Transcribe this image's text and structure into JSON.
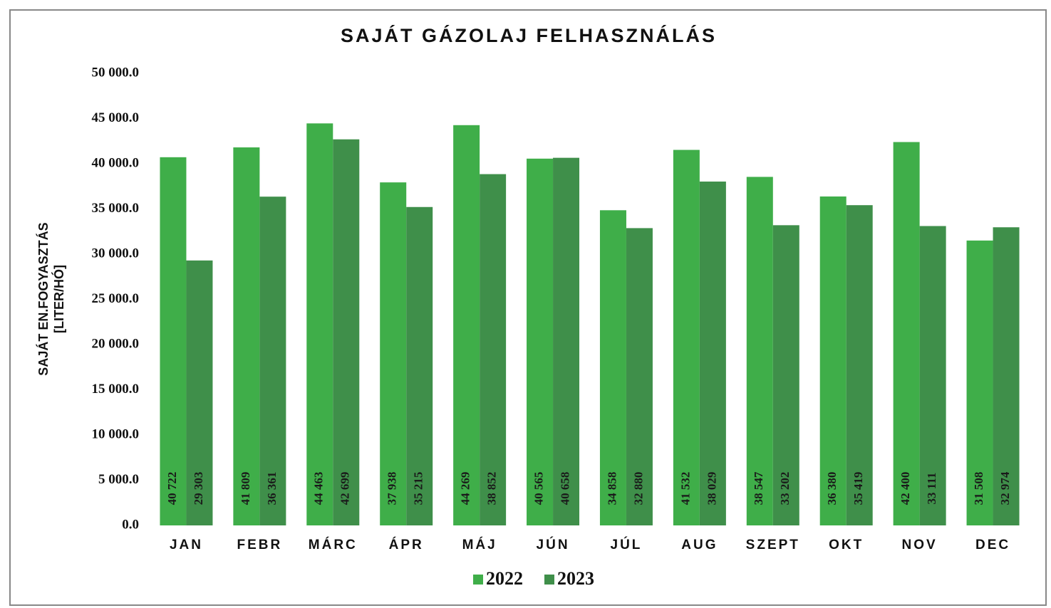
{
  "chart_data": {
    "type": "bar",
    "title": "SAJÁT GÁZOLAJ FELHASZNÁLÁS",
    "ylabel": [
      "SAJÁT EN.FOGYASZTÁS",
      "[LITER/HÓ]"
    ],
    "categories": [
      "JAN",
      "FEBR",
      "MÁRC",
      "ÁPR",
      "MÁJ",
      "JÚN",
      "JÚL",
      "AUG",
      "SZEPT",
      "OKT",
      "NOV",
      "DEC"
    ],
    "series": [
      {
        "name": "2022",
        "color": "#3fae49",
        "values": [
          40722,
          41809,
          44463,
          37938,
          44269,
          40565,
          34858,
          41532,
          38547,
          36380,
          42400,
          31508
        ],
        "value_labels": [
          "40 722",
          "41 809",
          "44 463",
          "37 938",
          "44 269",
          "40 565",
          "34 858",
          "41 532",
          "38 547",
          "36 380",
          "42 400",
          "31 508"
        ]
      },
      {
        "name": "2023",
        "color": "#3f8f4a",
        "values": [
          29303,
          36361,
          42699,
          35215,
          38852,
          40658,
          32880,
          38029,
          33202,
          35419,
          33111,
          32974
        ],
        "value_labels": [
          "29 303",
          "36 361",
          "42 699",
          "35 215",
          "38 852",
          "40 658",
          "32 880",
          "38 029",
          "33 202",
          "35 419",
          "33 111",
          "32 974"
        ]
      }
    ],
    "ylim": [
      0,
      50000
    ],
    "yticks": [
      {
        "value": 0,
        "label": "0.0"
      },
      {
        "value": 5000,
        "label": "5 000.0"
      },
      {
        "value": 10000,
        "label": "10 000.0"
      },
      {
        "value": 15000,
        "label": "15 000.0"
      },
      {
        "value": 20000,
        "label": "20 000.0"
      },
      {
        "value": 25000,
        "label": "25 000.0"
      },
      {
        "value": 30000,
        "label": "30 000.0"
      },
      {
        "value": 35000,
        "label": "35 000.0"
      },
      {
        "value": 40000,
        "label": "40 000.0"
      },
      {
        "value": 45000,
        "label": "45 000.0"
      },
      {
        "value": 50000,
        "label": "50 000.0"
      }
    ],
    "grid": false,
    "legend": "bottom"
  }
}
